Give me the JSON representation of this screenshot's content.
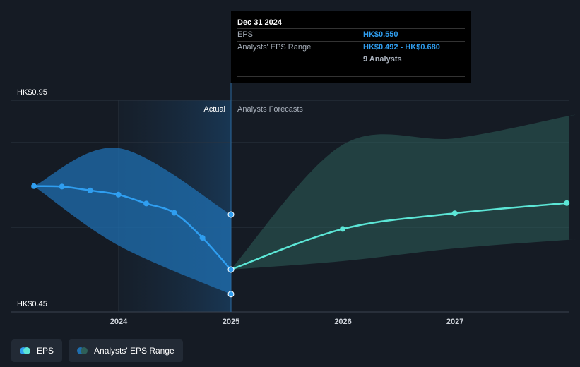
{
  "chart_data": {
    "type": "line",
    "title": "",
    "xlabel": "",
    "ylabel": "",
    "y_top_label": "HK$0.95",
    "y_bottom_label": "HK$0.45",
    "ylim": [
      0.45,
      0.95
    ],
    "x_ticks": [
      "2024",
      "2025",
      "2026",
      "2027"
    ],
    "actual_label": "Actual",
    "forecast_label": "Analysts Forecasts",
    "series": [
      {
        "name": "EPS",
        "kind": "actual",
        "color": "#2f9ef0",
        "points": [
          {
            "x": "2023-03-31",
            "y": 0.747
          },
          {
            "x": "2023-06-30",
            "y": 0.746
          },
          {
            "x": "2023-09-30",
            "y": 0.737
          },
          {
            "x": "2023-12-31",
            "y": 0.727
          },
          {
            "x": "2024-03-31",
            "y": 0.706
          },
          {
            "x": "2024-06-30",
            "y": 0.684
          },
          {
            "x": "2024-09-30",
            "y": 0.625
          },
          {
            "x": "2024-12-31",
            "y": 0.55
          }
        ]
      },
      {
        "name": "EPS",
        "kind": "forecast",
        "color": "#5ce6d6",
        "points": [
          {
            "x": "2024-12-31",
            "y": 0.55
          },
          {
            "x": "2025-12-31",
            "y": 0.646
          },
          {
            "x": "2026-12-31",
            "y": 0.683
          },
          {
            "x": "2027-12-31",
            "y": 0.707
          }
        ]
      }
    ],
    "ranges": [
      {
        "name": "Analysts' EPS Range",
        "kind": "actual",
        "color": "#1f6fb0",
        "points": [
          {
            "x": "2023-03-31",
            "low": 0.747,
            "high": 0.747
          },
          {
            "x": "2023-12-31",
            "low": 0.607,
            "high": 0.837
          },
          {
            "x": "2024-12-31",
            "low": 0.492,
            "high": 0.68
          }
        ]
      },
      {
        "name": "Analysts' EPS Range",
        "kind": "forecast",
        "color": "#2e5f59",
        "points": [
          {
            "x": "2024-12-31",
            "low": 0.55,
            "high": 0.55
          },
          {
            "x": "2025-12-31",
            "low": 0.57,
            "high": 0.845
          },
          {
            "x": "2026-12-31",
            "low": 0.6,
            "high": 0.86
          },
          {
            "x": "2027-12-31",
            "low": 0.62,
            "high": 0.912
          }
        ]
      }
    ],
    "grid": true,
    "legend_position": "bottom-left"
  },
  "tooltip": {
    "date": "Dec 31 2024",
    "eps_label": "EPS",
    "eps_value": "HK$0.550",
    "range_label": "Analysts' EPS Range",
    "range_value": "HK$0.492 - HK$0.680",
    "analysts": "9 Analysts"
  },
  "legend": {
    "eps_label": "EPS",
    "range_label": "Analysts' EPS Range",
    "eps_colors": [
      "#2f9ef0",
      "#5ce6d6"
    ],
    "range_colors": [
      "#1f6fb0",
      "#2e5f59"
    ]
  }
}
